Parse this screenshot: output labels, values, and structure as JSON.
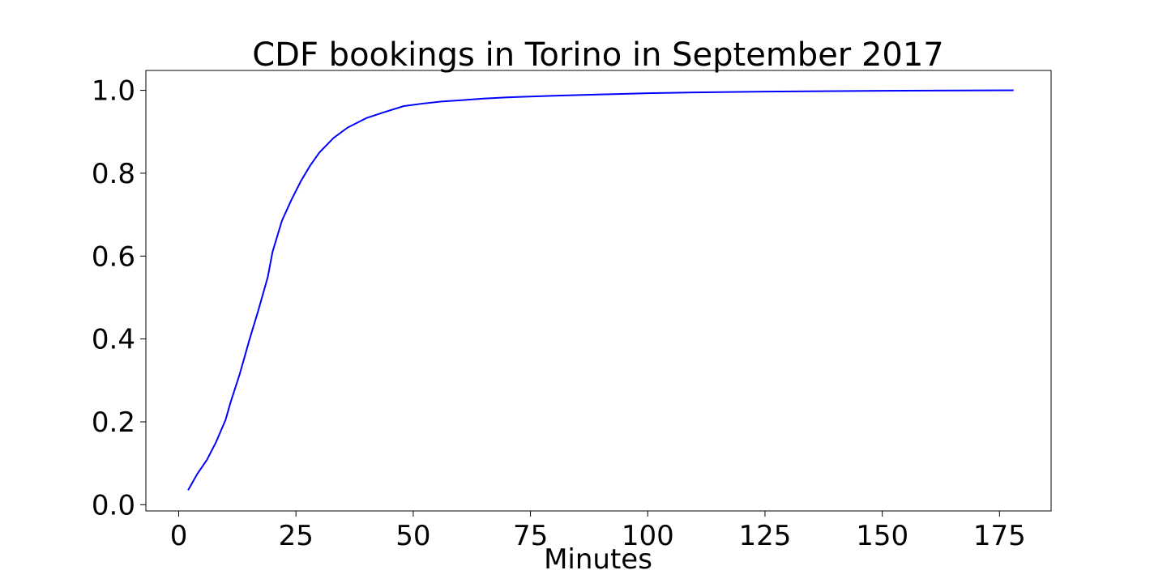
{
  "chart_data": {
    "type": "line",
    "title": "CDF bookings in Torino in September 2017",
    "xlabel": "Minutes",
    "ylabel": "",
    "xlim": [
      -7,
      186
    ],
    "ylim": [
      -0.015,
      1.048
    ],
    "xticks": [
      0,
      25,
      50,
      75,
      100,
      125,
      150,
      175
    ],
    "xtick_labels": [
      "0",
      "25",
      "50",
      "75",
      "100",
      "125",
      "150",
      "175"
    ],
    "yticks": [
      0.0,
      0.2,
      0.4,
      0.6,
      0.8,
      1.0
    ],
    "ytick_labels": [
      "0.0",
      "0.2",
      "0.4",
      "0.6",
      "0.8",
      "1.0"
    ],
    "grid": false,
    "series": [
      {
        "color": "#0000ff",
        "x": [
          2,
          4,
          6,
          8,
          10,
          11,
          13,
          15,
          17,
          19,
          20,
          22,
          24,
          26,
          28,
          30,
          33,
          36,
          40,
          44,
          48,
          52,
          56,
          60,
          65,
          70,
          80,
          90,
          100,
          110,
          125,
          150,
          178
        ],
        "y": [
          0.035,
          0.075,
          0.108,
          0.152,
          0.205,
          0.245,
          0.315,
          0.395,
          0.47,
          0.55,
          0.61,
          0.685,
          0.735,
          0.78,
          0.818,
          0.85,
          0.885,
          0.91,
          0.933,
          0.948,
          0.962,
          0.968,
          0.973,
          0.976,
          0.98,
          0.983,
          0.987,
          0.99,
          0.993,
          0.995,
          0.997,
          0.999,
          1.0
        ]
      }
    ]
  }
}
